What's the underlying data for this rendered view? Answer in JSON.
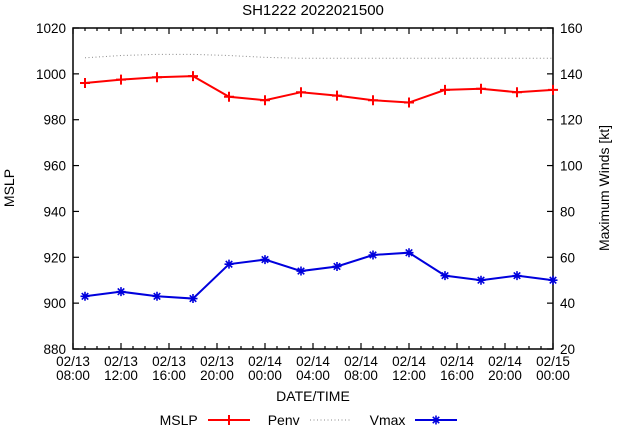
{
  "chart": {
    "title": "SH1222 2022021500",
    "xlabel": "DATE/TIME",
    "ylabel_left": "MSLP",
    "ylabel_right": "Maximum Winds [kt]",
    "background_color": "#ffffff",
    "axis_color": "#000000"
  },
  "chart_data": {
    "type": "line",
    "title": "SH1222 2022021500",
    "xlabel": "DATE/TIME",
    "ylabel_left": "MSLP",
    "ylabel_right": "Maximum Winds [kt]",
    "grid": false,
    "legend_position": "bottom-center",
    "x_axis": {
      "start_hour": 8,
      "end_hour": 48,
      "major_step_hours": 4,
      "minor_step_hours": 1,
      "tick_labels": [
        {
          "hour": 8,
          "date": "02/13",
          "time": "08:00"
        },
        {
          "hour": 12,
          "date": "02/13",
          "time": "12:00"
        },
        {
          "hour": 16,
          "date": "02/13",
          "time": "16:00"
        },
        {
          "hour": 20,
          "date": "02/13",
          "time": "20:00"
        },
        {
          "hour": 24,
          "date": "02/14",
          "time": "00:00"
        },
        {
          "hour": 28,
          "date": "02/14",
          "time": "04:00"
        },
        {
          "hour": 32,
          "date": "02/14",
          "time": "08:00"
        },
        {
          "hour": 36,
          "date": "02/14",
          "time": "12:00"
        },
        {
          "hour": 40,
          "date": "02/14",
          "time": "16:00"
        },
        {
          "hour": 44,
          "date": "02/14",
          "time": "20:00"
        },
        {
          "hour": 48,
          "date": "02/15",
          "time": "00:00"
        }
      ]
    },
    "y_left_axis": {
      "min": 880,
      "max": 1020,
      "step": 20,
      "tick_labels": [
        "880",
        "900",
        "920",
        "940",
        "960",
        "980",
        "1000",
        "1020"
      ]
    },
    "y_right_axis": {
      "min": 20,
      "max": 160,
      "step": 20,
      "tick_labels": [
        "20",
        "40",
        "60",
        "80",
        "100",
        "120",
        "140",
        "160"
      ]
    },
    "x_hours": [
      9,
      12,
      15,
      18,
      21,
      24,
      27,
      30,
      33,
      36,
      39,
      42,
      45,
      48
    ],
    "x_categories": [
      "02/13 09:00",
      "02/13 12:00",
      "02/13 15:00",
      "02/13 18:00",
      "02/13 21:00",
      "02/14 00:00",
      "02/14 03:00",
      "02/14 06:00",
      "02/14 09:00",
      "02/14 12:00",
      "02/14 15:00",
      "02/14 18:00",
      "02/14 21:00",
      "02/15 00:00"
    ],
    "series": [
      {
        "name": "MSLP",
        "axis": "left",
        "color": "#ff0000",
        "line": "solid",
        "marker": "plus",
        "values": [
          996,
          997.5,
          998.5,
          999,
          990,
          988.5,
          992,
          990.5,
          988.5,
          987.5,
          993,
          993.5,
          992,
          993
        ]
      },
      {
        "name": "Penv",
        "axis": "left",
        "color": "#8a8a8a",
        "line": "dotted",
        "marker": "none",
        "values": [
          1007,
          1008,
          1008.5,
          1008.5,
          1008,
          1007.2,
          1006.8,
          1006.8,
          1006.8,
          1006.8,
          1006.8,
          1006.8,
          1006.8,
          1006.8
        ]
      },
      {
        "name": "Vmax",
        "axis": "right",
        "color": "#0000dd",
        "line": "solid",
        "marker": "asterisk",
        "values": [
          43,
          45,
          43,
          42,
          57,
          59,
          54,
          56,
          61,
          62,
          52,
          50,
          52,
          50
        ]
      }
    ]
  }
}
